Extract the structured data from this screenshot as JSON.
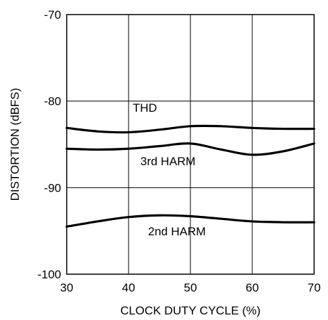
{
  "chart_data": {
    "type": "line",
    "title": "",
    "xlabel": "CLOCK DUTY CYCLE (%)",
    "ylabel": "DISTORTION (dBFS)",
    "xlim": [
      30,
      70
    ],
    "ylim": [
      -100,
      -70
    ],
    "x_ticks": [
      30,
      40,
      50,
      60,
      70
    ],
    "y_ticks": [
      -70,
      -80,
      -90,
      -100
    ],
    "grid": true,
    "legend": "none",
    "line_color": "#000000",
    "series": [
      {
        "name": "THD",
        "x": [
          30,
          35,
          40,
          45,
          50,
          55,
          60,
          65,
          70
        ],
        "y": [
          -83.1,
          -83.5,
          -83.6,
          -83.3,
          -82.9,
          -82.9,
          -83.1,
          -83.2,
          -83.2
        ]
      },
      {
        "name": "3rd HARM",
        "x": [
          30,
          35,
          40,
          45,
          50,
          55,
          60,
          65,
          70
        ],
        "y": [
          -85.5,
          -85.6,
          -85.5,
          -85.2,
          -84.9,
          -85.6,
          -86.2,
          -85.8,
          -84.9
        ]
      },
      {
        "name": "2nd HARM",
        "x": [
          30,
          35,
          40,
          45,
          50,
          55,
          60,
          65,
          70
        ],
        "y": [
          -94.5,
          -93.9,
          -93.4,
          -93.2,
          -93.3,
          -93.6,
          -93.9,
          -94.0,
          -94.0
        ]
      }
    ]
  }
}
